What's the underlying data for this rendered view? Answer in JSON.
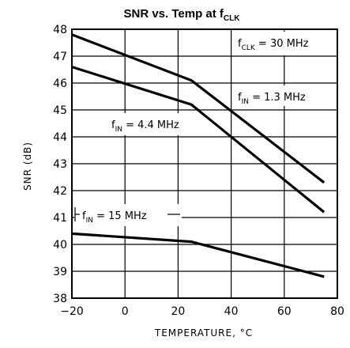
{
  "chart_data": {
    "type": "line",
    "title": "SNR vs. Temp at f",
    "title_subscript": "CLK",
    "xlabel": "TEMPERATURE, °C",
    "ylabel": "SNR (dB)",
    "xlim": [
      -20,
      80
    ],
    "ylim": [
      38,
      48
    ],
    "xticks": [
      -20,
      0,
      20,
      40,
      60,
      80
    ],
    "yticks": [
      38,
      39,
      40,
      41,
      42,
      43,
      44,
      45,
      46,
      47,
      48
    ],
    "grid": true,
    "series": [
      {
        "name": "f_CLK = 30 MHz",
        "x": [
          -20,
          25,
          75
        ],
        "y": [
          47.8,
          46.1,
          42.3
        ]
      },
      {
        "name": "f_IN = 1.3 MHz",
        "x": [
          -20,
          25,
          75
        ],
        "y": [
          46.6,
          45.2,
          41.2
        ]
      },
      {
        "name": "f_IN = 15 MHz",
        "x": [
          -20,
          25,
          75
        ],
        "y": [
          40.4,
          40.1,
          38.8
        ]
      }
    ],
    "annotations": [
      {
        "main": "f",
        "sub": "CLK",
        "rest": " = 30 MHz"
      },
      {
        "main": "f",
        "sub": "IN",
        "rest": " = 1.3 MHz"
      },
      {
        "main": "f",
        "sub": "IN",
        "rest": " = 4.4 MHz"
      },
      {
        "main": "f",
        "sub": "IN",
        "rest": " = 15 MHz"
      }
    ]
  }
}
